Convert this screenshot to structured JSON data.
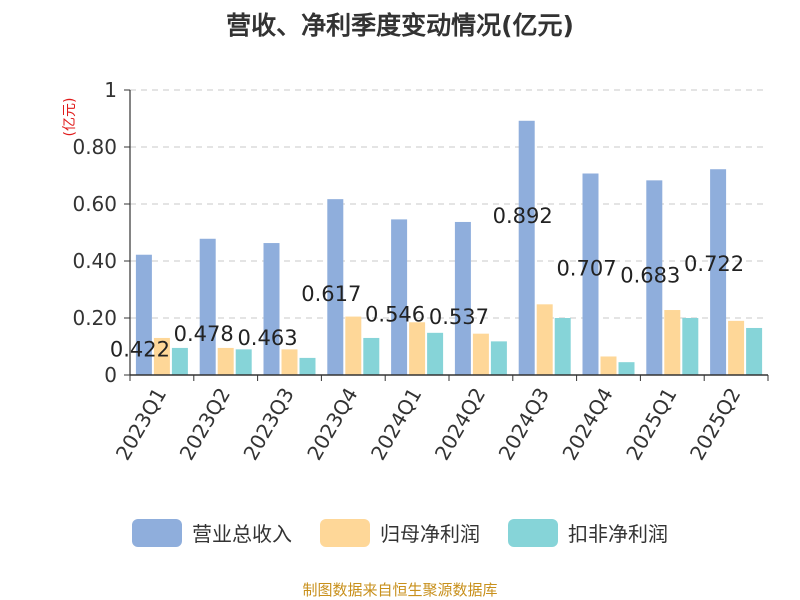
{
  "colors": {
    "revenue": "#8faedc",
    "net_profit": "#fed798",
    "deducted_profit": "#86d4d8",
    "unit": "#e01b1b",
    "source": "#c8901c"
  },
  "chart_data": {
    "type": "bar",
    "title": "营收、净利季度变动情况(亿元)",
    "unit_label": "(亿元)",
    "categories": [
      "2023Q1",
      "2023Q2",
      "2023Q3",
      "2023Q4",
      "2024Q1",
      "2024Q2",
      "2024Q3",
      "2024Q4",
      "2025Q1",
      "2025Q2"
    ],
    "series": [
      {
        "name": "营业总收入",
        "color": "#8faedc",
        "values": [
          0.422,
          0.478,
          0.463,
          0.617,
          0.546,
          0.537,
          0.892,
          0.707,
          0.683,
          0.722
        ]
      },
      {
        "name": "归母净利润",
        "color": "#fed798",
        "values": [
          0.13,
          0.095,
          0.09,
          0.205,
          0.185,
          0.145,
          0.248,
          0.065,
          0.228,
          0.19
        ]
      },
      {
        "name": "扣非净利润",
        "color": "#86d4d8",
        "values": [
          0.095,
          0.09,
          0.06,
          0.13,
          0.148,
          0.118,
          0.2,
          0.045,
          0.2,
          0.165
        ]
      }
    ],
    "data_labels": [
      "0.422",
      "0.478",
      "0.463",
      "0.617",
      "0.546",
      "0.537",
      "0.892",
      "0.707",
      "0.683",
      "0.722"
    ],
    "ylim": [
      0,
      1
    ],
    "yticks": [
      "0",
      "0.20",
      "0.40",
      "0.60",
      "0.80",
      "1"
    ],
    "grid": true,
    "legend_position": "bottom",
    "source": "制图数据来自恒生聚源数据库"
  }
}
